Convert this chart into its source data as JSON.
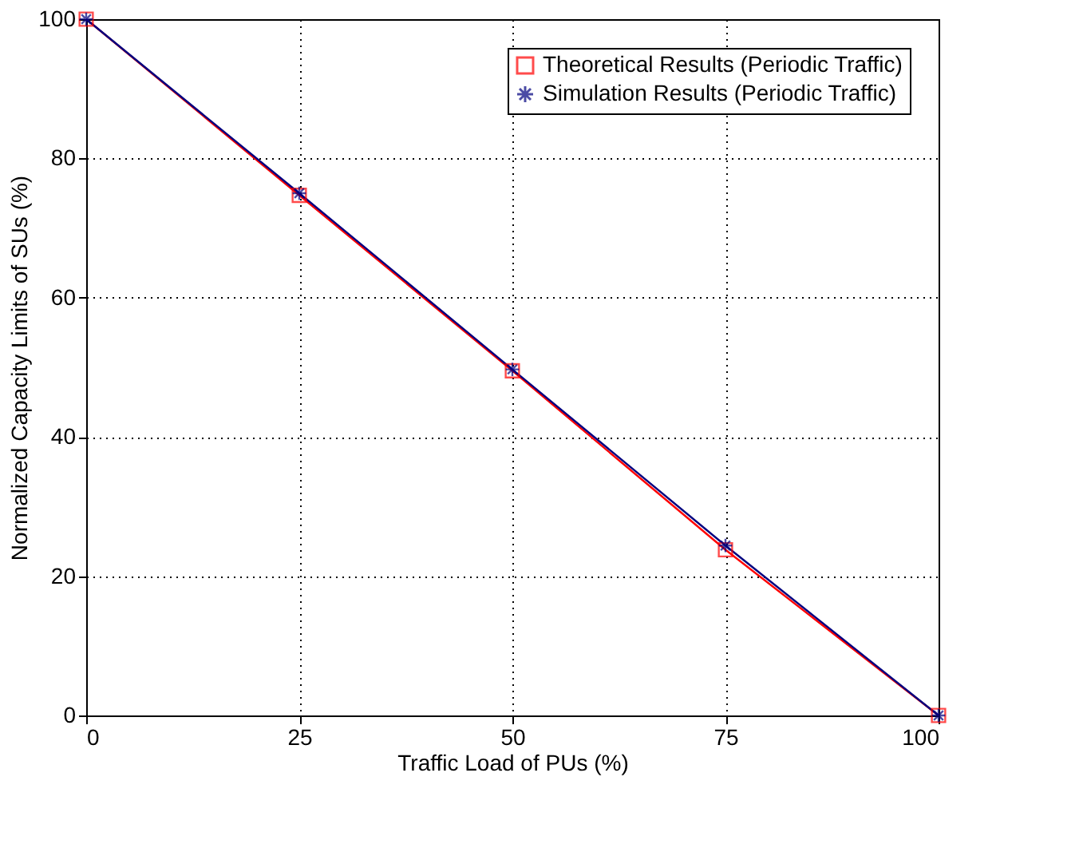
{
  "chart_data": {
    "type": "line",
    "xlabel": "Traffic Load of PUs (%)",
    "ylabel": "Normalized Capacity Limits of SUs (%)",
    "x": [
      0,
      25,
      50,
      75,
      100
    ],
    "series": [
      {
        "name": "Theoretical Results (Periodic Traffic)",
        "color": "#ff0000",
        "marker": "square",
        "values": [
          100,
          74.7,
          49.5,
          23.8,
          0
        ]
      },
      {
        "name": "Simulation Results (Periodic Traffic)",
        "color": "#00007f",
        "marker": "cross",
        "values": [
          100,
          75,
          49.7,
          24.4,
          0
        ]
      }
    ],
    "xlim": [
      0,
      100
    ],
    "xticks": [
      0,
      25,
      50,
      75,
      100
    ],
    "ylim": [
      0,
      100
    ],
    "yticks": [
      0,
      20,
      40,
      60,
      80,
      100
    ],
    "grid": true,
    "legend": "top right",
    "line_style": "solid"
  }
}
